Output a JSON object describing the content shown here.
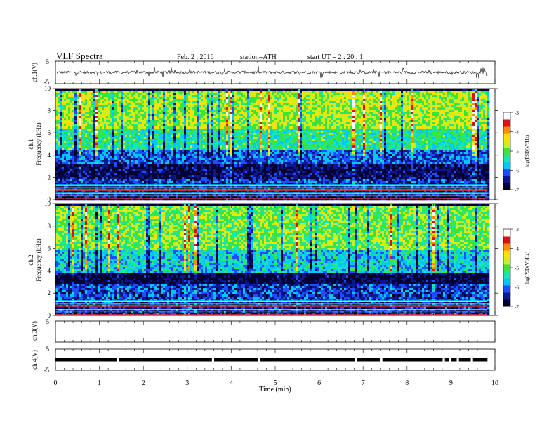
{
  "header": {
    "title": "VLF  Spectra",
    "date": "Feb. 2  , 2016",
    "station": "station=ATH",
    "start": "start  UT  =   2  : 20 : 1"
  },
  "chart_data": [
    {
      "type": "line",
      "panel": "ch1-waveform",
      "ylabel": "ch.1(V)",
      "ylim": [
        -5,
        5
      ],
      "yticks": [
        "5",
        "-5"
      ],
      "xlim": [
        0,
        10
      ],
      "baseline": 0,
      "amplitude_typical": 0.6
    },
    {
      "type": "heatmap",
      "panel": "ch1-spectrogram",
      "ylabel_lines": [
        "ch.1",
        "Frequency  (kHz)"
      ],
      "ylim": [
        0,
        10
      ],
      "yticks": [
        "0",
        "2",
        "4",
        "6",
        "8",
        "10"
      ],
      "xlim": [
        0,
        10
      ],
      "colorbar": {
        "label": "log(PSD(V²/Hz)",
        "range": [
          -7,
          -3
        ],
        "ticks": [
          "-3",
          "-4",
          "-5",
          "-6",
          "-7"
        ]
      },
      "bands": [
        {
          "from": 0,
          "to": 1.5,
          "level": -6.5
        },
        {
          "from": 1.5,
          "to": 2.0,
          "level": -6.2
        },
        {
          "from": 2.0,
          "to": 3.2,
          "level": -6.7
        },
        {
          "from": 3.2,
          "to": 4.5,
          "level": -6.1
        },
        {
          "from": 4.5,
          "to": 6.5,
          "level": -5.3
        },
        {
          "from": 6.5,
          "to": 10,
          "level": -4.7
        }
      ]
    },
    {
      "type": "heatmap",
      "panel": "ch2-spectrogram",
      "ylabel_lines": [
        "ch.2",
        "Frequency  (kHz)"
      ],
      "ylim": [
        0,
        10
      ],
      "yticks": [
        "0",
        "2",
        "4",
        "6",
        "8",
        "10"
      ],
      "xlim": [
        0,
        10
      ],
      "colorbar": {
        "label": "log(PSD(V²/Hz)",
        "range": [
          -7,
          -3
        ],
        "ticks": [
          "-3",
          "-4",
          "-5",
          "-6",
          "-7"
        ]
      },
      "bands": [
        {
          "from": 0,
          "to": 1.5,
          "level": -6.4
        },
        {
          "from": 1.5,
          "to": 3.0,
          "level": -6.2
        },
        {
          "from": 3.0,
          "to": 3.8,
          "level": -6.8
        },
        {
          "from": 3.8,
          "to": 6.0,
          "level": -5.6
        },
        {
          "from": 6.0,
          "to": 10,
          "level": -4.9
        }
      ]
    },
    {
      "type": "line",
      "panel": "ch3-waveform",
      "ylabel": "ch.3(V)",
      "ylim": [
        -5,
        5
      ],
      "yticks": [
        "5"
      ],
      "xlim": [
        0,
        10
      ],
      "note_values": "flat / no signal"
    },
    {
      "type": "line",
      "panel": "ch4-waveform",
      "ylabel": "ch.4(V)",
      "ylim": [
        -5,
        5
      ],
      "yticks": [
        "5",
        "-5"
      ],
      "xlim": [
        0,
        10
      ],
      "baseline": 0,
      "gaps_min": [
        1.42,
        3.58,
        4.63,
        6.83,
        7.41,
        8.83,
        8.98,
        9.15,
        9.47
      ]
    }
  ],
  "xaxis": {
    "label": "Time  (min)",
    "ticks": [
      "0",
      "1",
      "2",
      "3",
      "4",
      "5",
      "6",
      "7",
      "8",
      "9",
      "10"
    ],
    "data_end": 9.83
  },
  "colors": {
    "scale": [
      "#000033",
      "#0a1890",
      "#1e4cff",
      "#00c8ff",
      "#19e6a8",
      "#39e53c",
      "#c8f020",
      "#ffe000",
      "#ff8a00",
      "#e01010",
      "#ffffff"
    ]
  }
}
